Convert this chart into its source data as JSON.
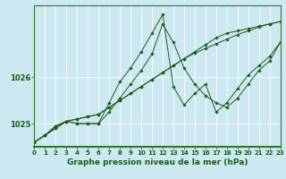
{
  "title": "Graphe pression niveau de la mer (hPa)",
  "bg_color": "#cce8f0",
  "line_color": "#1a5c1a",
  "grid_color": "#ffffff",
  "x_values": [
    0,
    1,
    2,
    3,
    4,
    5,
    6,
    7,
    8,
    9,
    10,
    11,
    12,
    13,
    14,
    15,
    16,
    17,
    18,
    19,
    20,
    21,
    22,
    23
  ],
  "series": [
    [
      1024.6,
      1024.75,
      1024.9,
      1025.05,
      1025.1,
      1025.15,
      1025.2,
      1025.35,
      1025.5,
      1025.65,
      1025.8,
      1025.95,
      1026.1,
      1026.25,
      1026.4,
      1026.55,
      1026.7,
      1026.85,
      1026.95,
      1027.0,
      1027.05,
      1027.1,
      1027.15,
      1027.2
    ],
    [
      1024.6,
      1024.75,
      1024.9,
      1025.05,
      1025.1,
      1025.15,
      1025.2,
      1025.35,
      1025.5,
      1025.65,
      1025.8,
      1025.95,
      1026.1,
      1026.25,
      1026.4,
      1026.52,
      1026.62,
      1026.72,
      1026.82,
      1026.92,
      1027.0,
      1027.08,
      1027.15,
      1027.2
    ],
    [
      1024.6,
      1024.75,
      1024.95,
      1025.05,
      1025.0,
      1025.0,
      1025.0,
      1025.25,
      1025.55,
      1025.85,
      1026.15,
      1026.5,
      1027.15,
      1026.75,
      1026.2,
      1025.85,
      1025.6,
      1025.45,
      1025.35,
      1025.55,
      1025.85,
      1026.15,
      1026.35,
      1026.75
    ],
    [
      1024.6,
      1024.75,
      1024.95,
      1025.05,
      1025.0,
      1025.0,
      1025.0,
      1025.45,
      1025.9,
      1026.2,
      1026.55,
      1026.95,
      1027.35,
      1025.8,
      1025.4,
      1025.65,
      1025.85,
      1025.25,
      1025.45,
      1025.75,
      1026.05,
      1026.25,
      1026.45,
      1026.75
    ]
  ],
  "xlim": [
    0,
    23
  ],
  "ylim": [
    1024.5,
    1027.55
  ],
  "yticks": [
    1025,
    1026
  ],
  "xticks": [
    0,
    1,
    2,
    3,
    4,
    5,
    6,
    7,
    8,
    9,
    10,
    11,
    12,
    13,
    14,
    15,
    16,
    17,
    18,
    19,
    20,
    21,
    22,
    23
  ],
  "marker": "D",
  "marker_size": 1.8,
  "line_width": 0.7,
  "title_fontsize": 6.5,
  "tick_fontsize": 5.0,
  "border_color": "#2d7a2d"
}
